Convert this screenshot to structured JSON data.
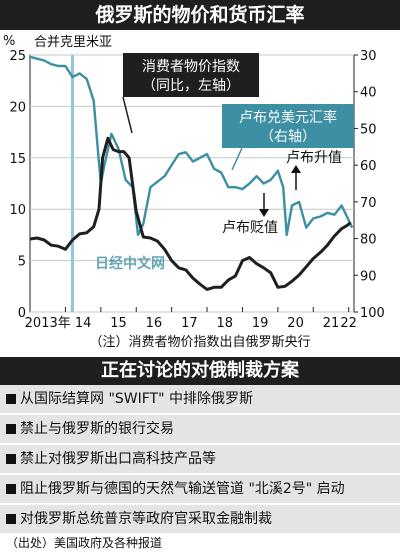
{
  "title": "俄罗斯的物价和货币汇率",
  "sanctions_title": "正在讨论的对俄制裁方案",
  "note": "（注）消费者物价指数出自俄罗斯央行",
  "source": "（出处）美国政府及各种报道",
  "watermark": "日经中文网",
  "sanctions": [
    "从国际结算网 \"SWIFT\" 中排除俄罗斯",
    "禁止与俄罗斯的银行交易",
    "禁止对俄罗斯出口高科技产品等",
    "阻止俄罗斯与德国的天然气输送管道 \"北溪2号\" 启动",
    "对俄罗斯总统普京等政府官采取金融制裁"
  ],
  "colors": {
    "cpi": "#1f1f1f",
    "rub": "#3d8fa3",
    "crimea_line": "#8fc7dd",
    "label_box": "#1f1f1f",
    "banner": "#1f1f1f",
    "list_bg": "#e4e4e4"
  },
  "chart_data": {
    "type": "line",
    "left_axis_unit": "%",
    "left_ylim": [
      0,
      25
    ],
    "left_ticks": [
      "0",
      "5",
      "10",
      "15",
      "20",
      "25"
    ],
    "right_ylim": [
      30,
      100
    ],
    "right_inverted": true,
    "right_ticks": [
      "30",
      "40",
      "50",
      "60",
      "70",
      "80",
      "90",
      "100"
    ],
    "x_range": [
      2013.0,
      2022.15
    ],
    "x_ticks": [
      {
        "label": "2013年",
        "x": 2013.5
      },
      {
        "label": "14",
        "x": 2014.5
      },
      {
        "label": "15",
        "x": 2015.5
      },
      {
        "label": "16",
        "x": 2016.5
      },
      {
        "label": "17",
        "x": 2017.5
      },
      {
        "label": "18",
        "x": 2018.5
      },
      {
        "label": "19",
        "x": 2019.5
      },
      {
        "label": "20",
        "x": 2020.5
      },
      {
        "label": "21",
        "x": 2021.5
      },
      {
        "label": "22",
        "x": 2022.0
      }
    ],
    "series": [
      {
        "name": "消费者物价指数（同比，左轴）",
        "axis": "left",
        "x": [
          2013.0,
          2013.2,
          2013.4,
          2013.6,
          2013.8,
          2014.0,
          2014.2,
          2014.4,
          2014.6,
          2014.8,
          2014.95,
          2015.05,
          2015.2,
          2015.35,
          2015.5,
          2015.65,
          2015.8,
          2016.0,
          2016.2,
          2016.4,
          2016.6,
          2016.8,
          2017.0,
          2017.2,
          2017.4,
          2017.6,
          2017.8,
          2018.0,
          2018.2,
          2018.4,
          2018.6,
          2018.8,
          2019.0,
          2019.2,
          2019.4,
          2019.6,
          2019.8,
          2020.0,
          2020.2,
          2020.4,
          2020.6,
          2020.8,
          2021.0,
          2021.2,
          2021.4,
          2021.6,
          2021.8,
          2021.95,
          2022.05
        ],
        "values": [
          7.1,
          7.2,
          7.0,
          6.5,
          6.4,
          6.1,
          7.0,
          7.6,
          7.7,
          8.3,
          10.0,
          15.0,
          16.9,
          15.8,
          15.6,
          15.6,
          15.0,
          9.8,
          7.3,
          7.2,
          6.9,
          6.1,
          5.0,
          4.3,
          4.1,
          3.3,
          2.7,
          2.2,
          2.4,
          2.4,
          3.1,
          3.5,
          5.0,
          5.3,
          4.7,
          4.3,
          3.8,
          2.4,
          2.5,
          3.0,
          3.6,
          4.4,
          5.2,
          5.8,
          6.5,
          7.4,
          8.1,
          8.4,
          8.7
        ]
      },
      {
        "name": "卢布兑美元汇率（右轴）",
        "axis": "right",
        "x": [
          2013.0,
          2013.2,
          2013.4,
          2013.6,
          2013.8,
          2014.0,
          2014.2,
          2014.4,
          2014.6,
          2014.8,
          2014.9,
          2015.0,
          2015.1,
          2015.3,
          2015.5,
          2015.7,
          2015.9,
          2016.05,
          2016.2,
          2016.4,
          2016.6,
          2016.8,
          2017.0,
          2017.2,
          2017.4,
          2017.6,
          2017.8,
          2018.0,
          2018.2,
          2018.4,
          2018.6,
          2018.8,
          2019.0,
          2019.2,
          2019.4,
          2019.6,
          2019.8,
          2020.0,
          2020.15,
          2020.25,
          2020.4,
          2020.6,
          2020.8,
          2021.0,
          2021.2,
          2021.4,
          2021.6,
          2021.8,
          2022.0,
          2022.1
        ],
        "values": [
          30.5,
          31.0,
          31.5,
          32.5,
          33.0,
          33.0,
          36.0,
          35.0,
          36.5,
          42.5,
          54.0,
          65.0,
          60.0,
          51.5,
          55.5,
          64.0,
          66.0,
          79.0,
          76.0,
          66.0,
          64.5,
          63.0,
          60.0,
          57.0,
          56.5,
          59.0,
          58.0,
          57.0,
          61.0,
          62.0,
          66.0,
          66.0,
          66.5,
          65.0,
          63.0,
          65.0,
          64.0,
          61.5,
          66.0,
          79.0,
          71.0,
          70.0,
          77.0,
          74.5,
          74.0,
          73.0,
          73.5,
          71.0,
          75.0,
          77.0
        ]
      }
    ],
    "annotations": [
      {
        "text": "合并克里米亚",
        "x": 2014.2
      },
      {
        "text": "消费者物价指数",
        "text2": "（同比，左轴）"
      },
      {
        "text": "卢布兑美元汇率",
        "text2": "（右轴）"
      },
      {
        "text": "卢布升值",
        "direction": "up"
      },
      {
        "text": "卢布贬值",
        "direction": "down"
      }
    ]
  }
}
